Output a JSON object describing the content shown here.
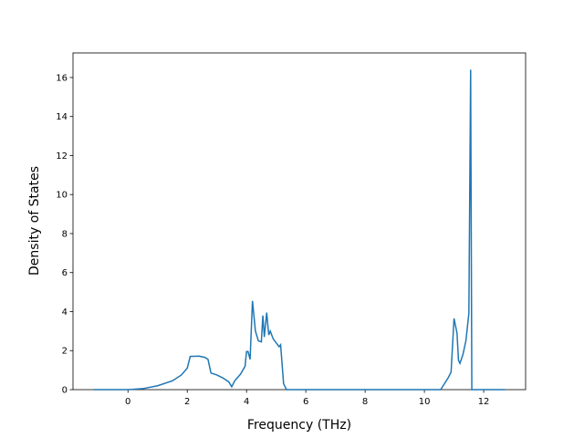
{
  "chart_data": {
    "type": "line",
    "x_label": "Frequency (THz)",
    "y_label": "Density of States",
    "x": [
      -1.16,
      -0.5,
      0,
      0.5,
      1.0,
      1.5,
      1.8,
      2.0,
      2.1,
      2.4,
      2.6,
      2.7,
      2.8,
      3.0,
      3.2,
      3.4,
      3.5,
      3.6,
      3.8,
      3.95,
      4.0,
      4.05,
      4.12,
      4.2,
      4.3,
      4.4,
      4.5,
      4.55,
      4.6,
      4.68,
      4.75,
      4.8,
      4.9,
      5.0,
      5.1,
      5.15,
      5.25,
      5.35,
      6,
      8,
      10,
      10.55,
      10.8,
      10.9,
      11.0,
      11.1,
      11.15,
      11.2,
      11.3,
      11.4,
      11.5,
      11.56,
      11.6,
      12,
      12.72
    ],
    "series": [
      {
        "color": "#1f77b4",
        "values": [
          0,
          0,
          0,
          0.05,
          0.2,
          0.45,
          0.75,
          1.1,
          1.7,
          1.72,
          1.65,
          1.55,
          0.85,
          0.75,
          0.6,
          0.4,
          0.15,
          0.45,
          0.8,
          1.2,
          1.95,
          1.95,
          1.55,
          4.55,
          3.0,
          2.5,
          2.45,
          3.8,
          2.7,
          3.95,
          2.8,
          3.0,
          2.6,
          2.4,
          2.2,
          2.3,
          0.3,
          0,
          0,
          0,
          0,
          0,
          0.6,
          0.9,
          3.65,
          2.9,
          1.5,
          1.35,
          1.8,
          2.5,
          3.9,
          16.4,
          0,
          0,
          0
        ]
      }
    ],
    "xlim": [
      -1.854,
      13.414
    ],
    "xticks": [
      0,
      2,
      4,
      6,
      8,
      10,
      12
    ],
    "ylim": [
      0,
      17.26
    ],
    "yticks": [
      0,
      2,
      4,
      6,
      8,
      10,
      12,
      14,
      16
    ]
  }
}
